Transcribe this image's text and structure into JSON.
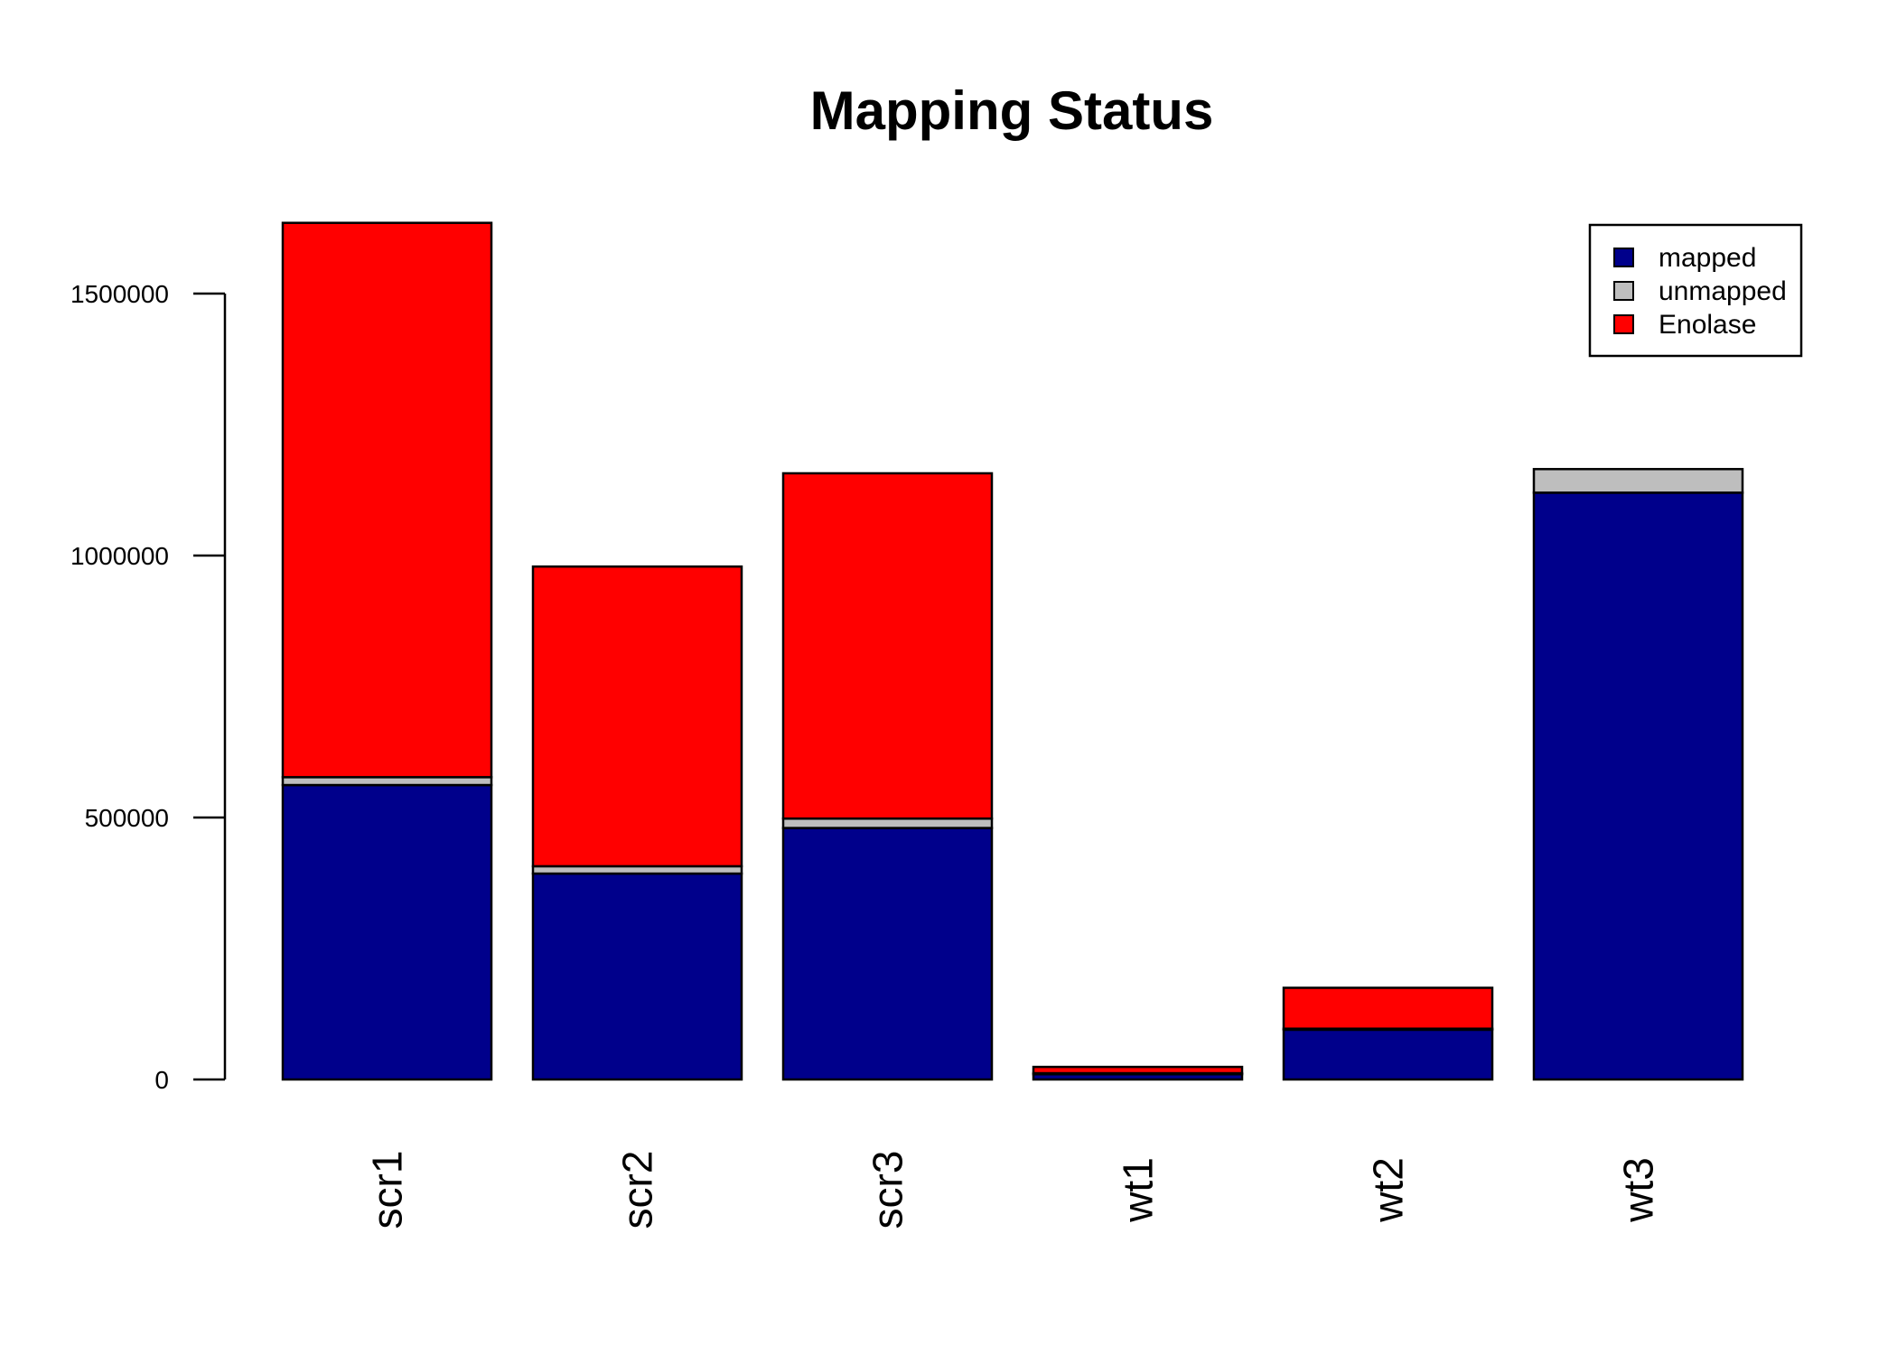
{
  "chart_data": {
    "type": "bar",
    "stacked": true,
    "title": "Mapping Status",
    "xlabel": "",
    "ylabel": "",
    "categories": [
      "scr1",
      "scr2",
      "scr3",
      "wt1",
      "wt2",
      "wt3"
    ],
    "series": [
      {
        "name": "mapped",
        "color": "#00008B",
        "values": [
          562000,
          393000,
          480000,
          10000,
          95000,
          1120000
        ]
      },
      {
        "name": "unmapped",
        "color": "#BEBEBE",
        "values": [
          15000,
          14000,
          18000,
          2000,
          2000,
          45000
        ]
      },
      {
        "name": "Enolase",
        "color": "#FF0000",
        "values": [
          1058000,
          572000,
          659000,
          12000,
          78000,
          0
        ]
      }
    ],
    "yticks": [
      0,
      500000,
      1000000,
      1500000
    ],
    "ytick_labels": [
      "0",
      "500000",
      "1000000",
      "1500000"
    ],
    "ylim": [
      0,
      1640000
    ],
    "grid": false,
    "legend_position": "top-right"
  }
}
